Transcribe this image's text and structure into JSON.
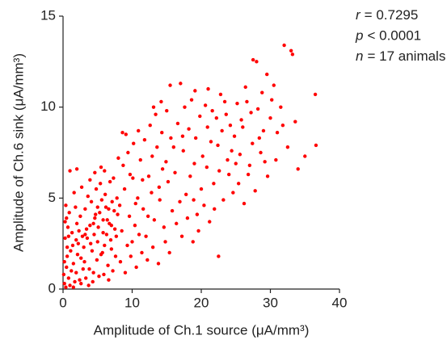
{
  "chart_data": {
    "type": "scatter",
    "xlabel": "Amplitude of Ch.1 source (μA/mm³)",
    "ylabel": "Amplitude of Ch.6 sink (μA/mm³)",
    "annotations": [
      {
        "symbol": "r",
        "text": "= 0.7295"
      },
      {
        "symbol": "p",
        "text": "< 0.0001"
      },
      {
        "symbol": "n",
        "text": "= 17 animals"
      }
    ],
    "color": "#ff0000",
    "xlim": [
      0,
      40
    ],
    "xticks": [
      0,
      10,
      20,
      30,
      40
    ],
    "ylim": [
      0,
      15
    ],
    "yticks": [
      0,
      5,
      10,
      15
    ],
    "x": [
      0.2,
      0.5,
      0.8,
      1.1,
      0.3,
      1.5,
      1.9,
      2.2,
      2.6,
      0.7,
      1.3,
      2.0,
      2.8,
      0.4,
      1.0,
      1.7,
      2.4,
      0.6,
      1.4,
      2.9,
      0.2,
      0.9,
      1.8,
      2.5,
      0.3,
      0.5,
      1.0,
      2.0,
      1.6,
      2.7,
      0.1,
      0.6,
      1.2,
      2.1,
      2.3,
      1.5,
      0.8,
      2.6,
      0.4,
      1.9,
      3.1,
      3.5,
      3.9,
      4.2,
      4.6,
      5.0,
      5.3,
      5.8,
      6.2,
      6.7,
      7.1,
      7.5,
      3.3,
      3.8,
      4.4,
      4.9,
      5.5,
      6.0,
      6.5,
      7.0,
      7.6,
      3.2,
      3.6,
      4.1,
      4.8,
      5.4,
      6.1,
      6.8,
      7.3,
      7.9,
      3.4,
      4.0,
      4.5,
      5.1,
      5.7,
      6.3,
      6.9,
      7.4,
      7.8,
      3.7,
      4.3,
      5.2,
      5.9,
      6.6,
      7.2,
      3.0,
      4.7,
      5.6,
      6.4,
      7.7,
      3.9,
      4.6,
      5.5,
      6.0,
      3.2,
      4.4,
      5.0,
      5.8,
      6.6,
      7.0,
      8.2,
      8.5,
      8.9,
      9.3,
      9.6,
      10.1,
      10.4,
      10.8,
      11.2,
      11.6,
      12.0,
      12.4,
      12.8,
      13.2,
      13.6,
      14.0,
      14.4,
      14.8,
      15.2,
      15.6,
      8.3,
      9.0,
      9.8,
      10.6,
      11.4,
      12.2,
      13.0,
      13.8,
      14.6,
      15.4,
      8.7,
      9.4,
      10.2,
      10.9,
      11.8,
      12.6,
      13.4,
      14.2,
      15.0,
      15.5,
      8.6,
      9.1,
      12.9,
      13.9,
      14.9,
      11.0,
      9.7,
      10.5,
      8.0,
      12.3,
      15.8,
      14.3,
      11.5,
      13.1,
      10.0,
      16.2,
      16.6,
      17.0,
      17.4,
      17.8,
      18.2,
      18.6,
      19.0,
      19.4,
      19.8,
      20.2,
      20.6,
      21.0,
      21.4,
      21.8,
      22.2,
      22.6,
      23.0,
      23.4,
      23.8,
      24.2,
      24.6,
      16.4,
      17.2,
      18.0,
      18.8,
      19.6,
      20.4,
      21.2,
      22.5,
      16.9,
      18.4,
      19.2,
      20.0,
      20.8,
      21.6,
      22.4,
      23.2,
      24.0,
      24.8,
      16.0,
      17.6,
      19.1,
      20.9,
      22.8,
      23.6,
      18.9,
      21.9,
      24.4,
      17.3,
      25.2,
      25.6,
      26.0,
      26.4,
      26.8,
      27.2,
      27.5,
      28.0,
      28.4,
      28.8,
      29.2,
      29.5,
      30.0,
      30.5,
      31.0,
      31.5,
      32.0,
      32.5,
      33.0,
      33.2,
      33.6,
      34.0,
      35.0,
      36.5,
      36.6,
      25.4,
      26.2,
      27.0,
      27.8,
      28.6,
      29.6,
      30.8,
      31.8,
      25.8,
      26.6,
      28.2,
      29.0,
      30.2,
      27.4,
      25.0
    ],
    "values": [
      0.3,
      1.2,
      0.6,
      2.1,
      2.8,
      1.4,
      0.9,
      2.5,
      1.7,
      3.4,
      3.1,
      3.6,
      2.9,
      0.1,
      0.2,
      0.4,
      0.5,
      1.8,
      2.4,
      1.1,
      1.5,
      4.2,
      4.5,
      4.0,
      3.7,
      3.9,
      6.5,
      6.6,
      5.3,
      5.6,
      0.8,
      2.3,
      1.0,
      1.9,
      3.2,
      0.1,
      2.9,
      0.3,
      4.6,
      2.7,
      1.5,
      2.8,
      3.5,
      2.1,
      3.9,
      2.6,
      4.2,
      3.1,
      4.5,
      3.6,
      4.8,
      3.3,
      0.6,
      1.1,
      0.9,
      1.6,
      1.9,
      2.4,
      1.3,
      2.2,
      1.8,
      4.4,
      5.1,
      4.8,
      5.5,
      5.8,
      5.2,
      5.9,
      6.1,
      4.1,
      3.3,
      2.5,
      3.0,
      3.4,
      2.0,
      3.0,
      2.7,
      4.3,
      5.0,
      0.2,
      0.4,
      0.7,
      0.8,
      0.5,
      1.0,
      2.3,
      4.1,
      4.9,
      3.8,
      2.9,
      6.0,
      6.4,
      6.7,
      6.5,
      3.0,
      3.6,
      4.5,
      3.8,
      4.4,
      3.5,
      4.6,
      3.2,
      5.5,
      2.4,
      4.0,
      6.1,
      3.5,
      5.0,
      7.1,
      4.4,
      2.9,
      6.2,
      5.3,
      3.8,
      7.8,
      4.9,
      6.6,
      2.6,
      5.9,
      8.3,
      1.5,
      0.9,
      1.8,
      1.2,
      2.0,
      1.6,
      2.3,
      1.4,
      3.4,
      2.0,
      6.8,
      7.5,
      8.0,
      8.7,
      8.2,
      9.0,
      9.6,
      10.3,
      9.8,
      11.2,
      8.6,
      8.5,
      7.3,
      5.6,
      7.0,
      3.0,
      6.3,
      4.7,
      7.2,
      4.0,
      4.3,
      8.6,
      6.0,
      10.0,
      2.6,
      6.4,
      9.1,
      11.3,
      7.6,
      5.2,
      8.8,
      10.4,
      6.9,
      4.1,
      9.5,
      7.3,
      10.1,
      11.0,
      8.1,
      5.8,
      9.4,
      6.5,
      8.7,
      10.3,
      7.1,
      9.0,
      5.3,
      3.6,
      2.9,
      3.9,
      2.6,
      3.2,
      4.6,
      3.7,
      1.8,
      4.8,
      6.2,
      8.3,
      5.5,
      6.7,
      9.8,
      7.9,
      4.9,
      6.3,
      8.4,
      7.8,
      10.0,
      10.9,
      8.9,
      10.7,
      9.6,
      4.9,
      4.4,
      7.6,
      8.4,
      10.2,
      7.4,
      8.9,
      11.1,
      6.3,
      9.7,
      12.6,
      12.5,
      8.3,
      10.8,
      7.0,
      11.8,
      9.4,
      11.2,
      8.6,
      10.0,
      13.4,
      7.8,
      13.1,
      12.9,
      9.2,
      6.6,
      7.3,
      10.7,
      7.9,
      5.8,
      4.7,
      6.8,
      5.4,
      7.5,
      6.2,
      7.1,
      9.0,
      9.3,
      10.3,
      9.9,
      8.7,
      10.4,
      8.0,
      6.9
    ]
  }
}
